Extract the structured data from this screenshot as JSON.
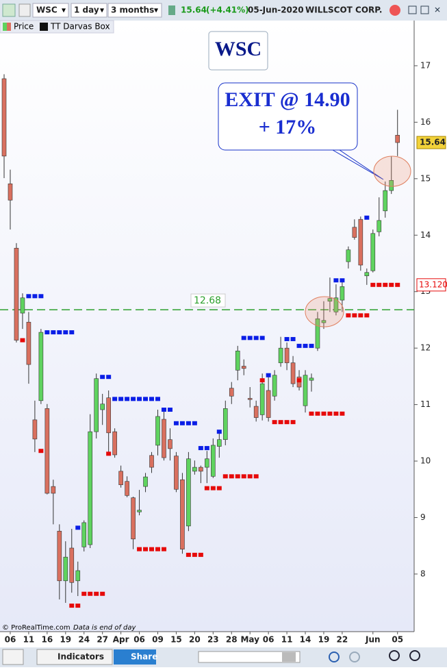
{
  "toolbar": {
    "symbol": "WSC",
    "interval": "1 day",
    "period": "3 months",
    "last": 15.64,
    "change": "(+4.41%)",
    "date": "05-Jun-2020",
    "name": "WILLSCOT CORP."
  },
  "chart_data": {
    "type": "candlestick",
    "title": "WSC",
    "annotations": [
      "EXIT @ 14.90",
      "+ 17%"
    ],
    "categories": [
      null,
      "06",
      null,
      null,
      "11",
      null,
      null,
      "16",
      null,
      null,
      "19",
      null,
      null,
      "24",
      null,
      null,
      "27",
      null,
      null,
      "Apr",
      null,
      null,
      "06",
      null,
      null,
      "09",
      null,
      null,
      "15",
      null,
      null,
      "20",
      null,
      null,
      "23",
      null,
      null,
      "28",
      null,
      null,
      "May",
      null,
      null,
      "06",
      null,
      null,
      "11",
      null,
      null,
      "14",
      null,
      null,
      "19",
      null,
      null,
      "22",
      null,
      null,
      null,
      null,
      "Jun",
      null,
      null,
      null,
      "05"
    ],
    "series": [
      {
        "name": "Price",
        "up_color": "#5fd35f",
        "down_color": "#d9705f",
        "open": [
          16.77,
          14.91,
          13.77,
          12.62,
          12.46,
          10.73,
          11.07,
          10.93,
          9.55,
          8.76,
          7.88,
          8.46,
          7.88,
          8.48,
          8.52,
          10.52,
          10.91,
          11.12,
          10.52,
          9.82,
          9.64,
          9.35,
          9.1,
          9.55,
          10.1,
          10.28,
          10.74,
          10.38,
          10.09,
          9.67,
          8.85,
          9.82,
          9.89,
          9.89,
          9.73,
          10.26,
          10.38,
          11.29,
          11.61,
          11.68,
          11.11,
          10.97,
          10.82,
          11.25,
          11.15,
          11.74,
          12.0,
          11.74,
          11.49,
          10.98,
          11.43,
          12.0,
          12.45,
          12.83,
          12.64,
          12.85,
          13.53,
          14.14,
          14.28,
          13.28,
          13.37,
          14.06,
          14.43,
          14.79,
          15.77
        ],
        "high": [
          16.85,
          15.16,
          13.86,
          12.97,
          12.64,
          11.07,
          12.34,
          11.01,
          9.67,
          8.88,
          8.58,
          8.8,
          8.22,
          8.95,
          10.83,
          11.55,
          11.19,
          11.25,
          10.58,
          9.92,
          9.73,
          9.37,
          9.49,
          9.79,
          10.16,
          10.91,
          10.91,
          10.58,
          10.16,
          9.79,
          10.16,
          10.01,
          9.92,
          10.18,
          10.4,
          10.52,
          11.07,
          11.4,
          12.04,
          11.8,
          11.31,
          11.07,
          11.55,
          11.55,
          11.61,
          12.2,
          12.1,
          11.86,
          11.61,
          11.61,
          11.55,
          12.64,
          12.83,
          13.25,
          13.13,
          13.19,
          13.8,
          14.28,
          14.33,
          13.41,
          14.1,
          14.67,
          14.95,
          15.4,
          16.22
        ],
        "low": [
          15.01,
          14.1,
          12.1,
          12.34,
          11.37,
          10.16,
          11.01,
          9.41,
          8.88,
          7.55,
          7.49,
          7.67,
          7.61,
          8.4,
          8.46,
          10.4,
          10.64,
          10.16,
          10.06,
          9.53,
          9.36,
          8.44,
          9.04,
          9.45,
          9.79,
          10.1,
          10.01,
          10.01,
          9.45,
          8.36,
          8.76,
          9.76,
          9.61,
          9.61,
          9.7,
          10.06,
          10.28,
          11.01,
          11.43,
          11.52,
          10.95,
          10.7,
          10.72,
          10.7,
          11.07,
          11.67,
          11.61,
          11.31,
          11.25,
          10.86,
          11.23,
          11.95,
          12.34,
          12.64,
          12.58,
          12.64,
          13.41,
          13.92,
          13.37,
          13.12,
          13.34,
          13.98,
          14.31,
          14.73,
          15.4
        ],
        "close": [
          15.4,
          14.62,
          12.14,
          12.89,
          11.71,
          10.39,
          12.28,
          9.43,
          9.43,
          7.88,
          8.3,
          7.85,
          8.06,
          8.91,
          10.52,
          11.46,
          11.01,
          10.5,
          10.11,
          9.58,
          9.39,
          8.62,
          9.13,
          9.72,
          9.89,
          10.79,
          10.06,
          10.22,
          9.5,
          8.44,
          10.04,
          9.89,
          9.82,
          10.04,
          10.28,
          10.38,
          10.93,
          11.15,
          11.95,
          11.64,
          11.09,
          10.77,
          11.37,
          10.77,
          11.52,
          12.0,
          11.74,
          11.37,
          11.31,
          11.52,
          11.47,
          12.52,
          12.49,
          12.88,
          12.89,
          13.09,
          13.74,
          13.96,
          13.47,
          13.34,
          14.03,
          14.26,
          14.79,
          14.97,
          15.64
        ]
      },
      {
        "name": "TT Darvas Box",
        "color": "#111111",
        "top_color": "#0a1ee6",
        "bottom_color": "#e60a0a",
        "top": [
          null,
          null,
          null,
          null,
          12.92,
          12.92,
          12.92,
          12.28,
          12.28,
          12.28,
          12.28,
          12.28,
          8.82,
          null,
          null,
          null,
          11.49,
          11.49,
          11.1,
          11.1,
          11.1,
          11.1,
          11.1,
          11.1,
          11.1,
          11.1,
          10.91,
          10.91,
          10.67,
          10.67,
          10.67,
          10.67,
          10.23,
          10.23,
          null,
          10.52,
          null,
          null,
          null,
          12.18,
          12.18,
          12.18,
          12.18,
          11.52,
          null,
          null,
          12.16,
          12.16,
          12.04,
          12.04,
          12.04,
          null,
          null,
          null,
          13.2,
          13.2,
          null,
          null,
          null,
          14.31,
          null,
          null,
          null,
          null,
          null
        ],
        "bottom": [
          null,
          null,
          null,
          12.14,
          null,
          null,
          10.18,
          null,
          null,
          null,
          null,
          7.44,
          7.44,
          7.65,
          7.65,
          7.65,
          7.65,
          10.13,
          null,
          null,
          null,
          null,
          8.44,
          8.44,
          8.44,
          8.44,
          8.44,
          null,
          null,
          null,
          8.34,
          8.34,
          8.34,
          9.52,
          9.52,
          9.52,
          9.73,
          9.73,
          9.73,
          9.73,
          9.73,
          9.73,
          11.43,
          null,
          10.69,
          10.69,
          10.69,
          10.69,
          11.43,
          null,
          10.84,
          10.84,
          10.84,
          10.84,
          10.84,
          10.84,
          12.58,
          12.58,
          12.58,
          12.58,
          13.12,
          13.12,
          13.12,
          13.12,
          13.12
        ]
      }
    ],
    "ylim": [
      6.98,
      17.8
    ],
    "yticks": [
      8,
      9,
      10,
      11,
      12,
      13,
      14,
      15,
      16,
      17
    ],
    "hline": 12.68,
    "hline_color": "#2ca02c",
    "last_price": 15.64,
    "box_tag": {
      "value": 13.12,
      "label": "13.120"
    }
  },
  "footer": {
    "copyright": "© ProRealTime.com",
    "note": "Data is end of day"
  },
  "bottom_bar": {
    "indicators": "Indicators",
    "share": "Share"
  }
}
